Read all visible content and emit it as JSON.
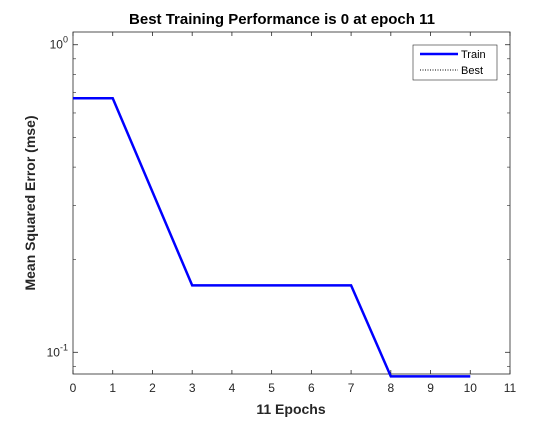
{
  "chart_data": {
    "type": "line",
    "title": "Best Training Performance is 0 at epoch 11",
    "xlabel": "11 Epochs",
    "ylabel": "Mean Squared Error  (mse)",
    "xlim": [
      0,
      11
    ],
    "ylim": [
      0.085,
      1.1
    ],
    "yscale": "log",
    "grid": false,
    "legend_position": "top-right",
    "x_ticks": [
      0,
      1,
      2,
      3,
      4,
      5,
      6,
      7,
      8,
      9,
      10,
      11
    ],
    "y_ticks": [
      {
        "value": 0.1,
        "base": "10",
        "exponent": "-1"
      },
      {
        "value": 1,
        "base": "10",
        "exponent": "0"
      }
    ],
    "series": [
      {
        "name": "Train",
        "color": "#0000ff",
        "style": "solid",
        "x": [
          0,
          1,
          3,
          7,
          8,
          10
        ],
        "y": [
          0.67,
          0.67,
          0.165,
          0.165,
          0.0835,
          0.0835
        ]
      },
      {
        "name": "Best",
        "color": "#000000",
        "style": "dotted",
        "x": [],
        "y": []
      }
    ]
  }
}
